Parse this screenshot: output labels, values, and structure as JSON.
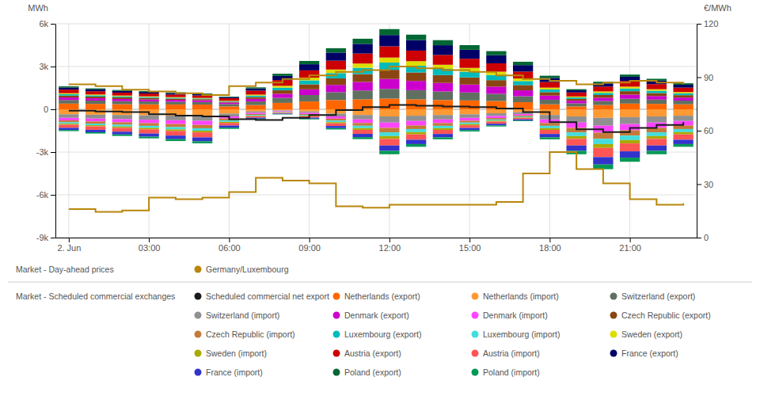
{
  "chart_data": {
    "type": "bar",
    "stacked": true,
    "grid": true,
    "x": [
      0,
      1,
      2,
      3,
      4,
      5,
      6,
      7,
      8,
      9,
      10,
      11,
      12,
      13,
      14,
      15,
      16,
      17,
      18,
      19,
      20,
      21,
      22,
      23
    ],
    "xlim": [
      -0.5,
      23.5
    ],
    "xticks": [
      {
        "value": 0,
        "label": "2. Jun"
      },
      {
        "value": 3,
        "label": "03:00"
      },
      {
        "value": 6,
        "label": "06:00"
      },
      {
        "value": 9,
        "label": "09:00"
      },
      {
        "value": 12,
        "label": "12:00"
      },
      {
        "value": 15,
        "label": "15:00"
      },
      {
        "value": 18,
        "label": "18:00"
      },
      {
        "value": 21,
        "label": "21:00"
      }
    ],
    "ylim": [
      -9000,
      6000
    ],
    "yticks": [
      {
        "value": -9000,
        "label": "-9k"
      },
      {
        "value": -6000,
        "label": "-6k"
      },
      {
        "value": -3000,
        "label": "-3k"
      },
      0,
      {
        "value": 3000,
        "label": "3k"
      },
      {
        "value": 6000,
        "label": "6k"
      }
    ],
    "y2lim": [
      0,
      120
    ],
    "y2ticks": [
      0,
      30,
      60,
      90,
      120
    ],
    "ylabel": "MWh",
    "y2label": "€/MWh",
    "annotations": [
      "Market - Day-ahead prices",
      "Market - Scheduled commercial exchanges"
    ],
    "series": [
      {
        "name": "Scheduled commercial net export",
        "type": "step",
        "color": "#1a1a1a",
        "values": [
          -100,
          -150,
          -200,
          -350,
          -450,
          -500,
          -700,
          -750,
          -600,
          -400,
          -50,
          150,
          300,
          250,
          200,
          150,
          50,
          -200,
          -900,
          -1400,
          -1600,
          -1300,
          -1100,
          -900
        ]
      },
      {
        "name": "Netherlands (export)",
        "type": "bar",
        "color": "#FF6600",
        "values": [
          400,
          380,
          360,
          350,
          340,
          330,
          200,
          300,
          450,
          550,
          650,
          700,
          750,
          700,
          650,
          620,
          580,
          500,
          350,
          200,
          300,
          400,
          380,
          350
        ]
      },
      {
        "name": "Netherlands (import)",
        "type": "bar",
        "color": "#FF9933",
        "values": [
          -350,
          -380,
          -400,
          -420,
          -440,
          -460,
          -300,
          -150,
          -80,
          -150,
          -300,
          -400,
          -500,
          -450,
          -400,
          -350,
          -280,
          -200,
          -400,
          -500,
          -600,
          -550,
          -500,
          -450
        ]
      },
      {
        "name": "Switzerland (export)",
        "type": "bar",
        "color": "#607060",
        "values": [
          250,
          230,
          210,
          200,
          190,
          180,
          170,
          250,
          350,
          450,
          550,
          620,
          680,
          640,
          600,
          560,
          510,
          420,
          320,
          220,
          280,
          340,
          300,
          260
        ]
      },
      {
        "name": "Switzerland (import)",
        "type": "bar",
        "color": "#909090",
        "values": [
          -250,
          -270,
          -290,
          -310,
          -330,
          -350,
          -200,
          -100,
          -50,
          -100,
          -200,
          -310,
          -430,
          -370,
          -310,
          -250,
          -190,
          -130,
          -310,
          -430,
          -550,
          -490,
          -430,
          -370
        ]
      },
      {
        "name": "Denmark (export)",
        "type": "bar",
        "color": "#CC00CC",
        "values": [
          180,
          165,
          155,
          145,
          135,
          125,
          100,
          180,
          290,
          400,
          510,
          600,
          700,
          650,
          600,
          555,
          500,
          410,
          290,
          180,
          230,
          290,
          250,
          210
        ]
      },
      {
        "name": "Denmark (import)",
        "type": "bar",
        "color": "#FF44FF",
        "values": [
          -180,
          -200,
          -220,
          -240,
          -265,
          -285,
          -150,
          -80,
          -40,
          -80,
          -160,
          -250,
          -370,
          -310,
          -255,
          -200,
          -145,
          -100,
          -255,
          -370,
          -490,
          -430,
          -370,
          -310
        ]
      },
      {
        "name": "Czech Republic (export)",
        "type": "bar",
        "color": "#8B4513",
        "values": [
          130,
          115,
          105,
          95,
          85,
          75,
          60,
          130,
          240,
          350,
          460,
          550,
          640,
          595,
          550,
          505,
          455,
          370,
          240,
          130,
          190,
          240,
          210,
          170
        ]
      },
      {
        "name": "Czech Republic (import)",
        "type": "bar",
        "color": "#C47A3A",
        "values": [
          -130,
          -150,
          -170,
          -190,
          -215,
          -235,
          -125,
          -65,
          -32,
          -65,
          -130,
          -195,
          -315,
          -255,
          -195,
          -130,
          -100,
          -75,
          -195,
          -315,
          -435,
          -375,
          -315,
          -255
        ]
      },
      {
        "name": "Luxembourg (export)",
        "type": "bar",
        "color": "#00BBBB",
        "values": [
          100,
          90,
          80,
          70,
          60,
          50,
          40,
          100,
          190,
          280,
          370,
          440,
          510,
          470,
          435,
          400,
          360,
          280,
          190,
          100,
          150,
          190,
          160,
          130
        ]
      },
      {
        "name": "Luxembourg (import)",
        "type": "bar",
        "color": "#44DDDD",
        "values": [
          -100,
          -115,
          -130,
          -145,
          -160,
          -170,
          -105,
          -55,
          -28,
          -55,
          -110,
          -165,
          -265,
          -215,
          -165,
          -110,
          -85,
          -55,
          -165,
          -265,
          -365,
          -315,
          -265,
          -215
        ]
      },
      {
        "name": "Sweden (export)",
        "type": "bar",
        "color": "#DDDD00",
        "values": [
          70,
          60,
          55,
          50,
          45,
          40,
          30,
          70,
          130,
          190,
          250,
          300,
          350,
          320,
          290,
          265,
          235,
          185,
          130,
          70,
          105,
          130,
          110,
          90
        ]
      },
      {
        "name": "Sweden (import)",
        "type": "bar",
        "color": "#AAAA00",
        "values": [
          -70,
          -80,
          -90,
          -100,
          -110,
          -120,
          -75,
          -40,
          -20,
          -40,
          -80,
          -120,
          -195,
          -160,
          -120,
          -80,
          -60,
          -40,
          -120,
          -195,
          -270,
          -235,
          -195,
          -160
        ]
      },
      {
        "name": "Austria (export)",
        "type": "bar",
        "color": "#CC0000",
        "values": [
          250,
          225,
          205,
          195,
          180,
          170,
          180,
          280,
          400,
          510,
          620,
          700,
          790,
          740,
          690,
          640,
          585,
          480,
          390,
          280,
          340,
          400,
          355,
          310
        ]
      },
      {
        "name": "Austria (import)",
        "type": "bar",
        "color": "#FF5555",
        "values": [
          -220,
          -245,
          -270,
          -295,
          -325,
          -350,
          -185,
          -95,
          -48,
          -95,
          -190,
          -285,
          -465,
          -375,
          -285,
          -190,
          -150,
          -100,
          -285,
          -465,
          -645,
          -555,
          -465,
          -375
        ]
      },
      {
        "name": "France (export)",
        "type": "bar",
        "color": "#000066",
        "values": [
          150,
          135,
          120,
          110,
          100,
          90,
          75,
          150,
          290,
          430,
          570,
          680,
          790,
          735,
          680,
          630,
          565,
          455,
          290,
          150,
          220,
          290,
          245,
          200
        ]
      },
      {
        "name": "France (import)",
        "type": "bar",
        "color": "#3333CC",
        "values": [
          -150,
          -170,
          -195,
          -220,
          -250,
          -275,
          -145,
          -75,
          -38,
          -75,
          -150,
          -225,
          -375,
          -305,
          -235,
          -150,
          -120,
          -80,
          -235,
          -375,
          -515,
          -445,
          -375,
          -305
        ]
      },
      {
        "name": "Poland (export)",
        "type": "bar",
        "color": "#006633",
        "values": [
          80,
          70,
          65,
          60,
          55,
          50,
          40,
          80,
          155,
          230,
          305,
          360,
          415,
          385,
          355,
          325,
          290,
          235,
          155,
          80,
          120,
          155,
          130,
          105
        ]
      },
      {
        "name": "Poland (import)",
        "type": "bar",
        "color": "#009955",
        "values": [
          -80,
          -92,
          -105,
          -118,
          -132,
          -142,
          -90,
          -47,
          -24,
          -47,
          -95,
          -142,
          -237,
          -190,
          -142,
          -95,
          -75,
          -47,
          -142,
          -237,
          -332,
          -285,
          -237,
          -190
        ]
      },
      {
        "name": "Germany/Luxembourg",
        "type": "step",
        "axis": "y2",
        "color": "#B8860B",
        "values": [
          86,
          85,
          83,
          82,
          81,
          80,
          85,
          87,
          89,
          91,
          93,
          94,
          96,
          95,
          94,
          93,
          91,
          89,
          88,
          86,
          87,
          88,
          87,
          86
        ]
      },
      {
        "type": "step",
        "color": "#B8860B",
        "values": [
          -7000,
          -7200,
          -7100,
          -6200,
          -6300,
          -6200,
          -5800,
          -4800,
          -5000,
          -5200,
          -6800,
          -6900,
          -6700,
          -6700,
          -6700,
          -6700,
          -6500,
          -4500,
          -3000,
          -4200,
          -5200,
          -6300,
          -6700,
          -6600
        ]
      }
    ]
  }
}
